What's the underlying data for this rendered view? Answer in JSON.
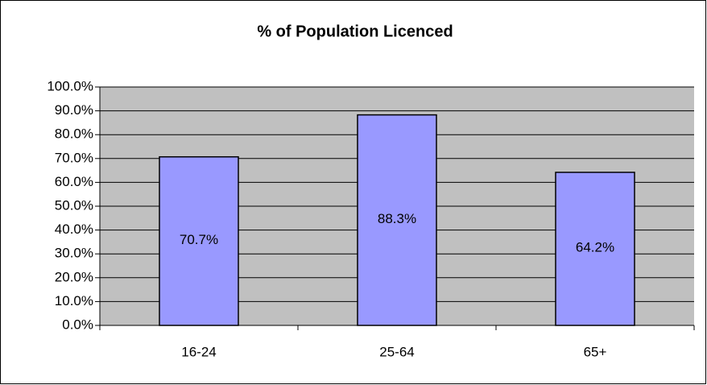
{
  "chart_data": {
    "type": "bar",
    "title": "% of Population Licenced",
    "categories": [
      "16-24",
      "25-64",
      "65+"
    ],
    "values": [
      70.7,
      88.3,
      64.2
    ],
    "value_labels": [
      "70.7%",
      "88.3%",
      "64.2%"
    ],
    "color": "#9999ff",
    "ylim": [
      0,
      100
    ],
    "yticks": [
      {
        "value": 0,
        "label": "0.0%"
      },
      {
        "value": 10,
        "label": "10.0%"
      },
      {
        "value": 20,
        "label": "20.0%"
      },
      {
        "value": 30,
        "label": "30.0%"
      },
      {
        "value": 40,
        "label": "40.0%"
      },
      {
        "value": 50,
        "label": "50.0%"
      },
      {
        "value": 60,
        "label": "60.0%"
      },
      {
        "value": 70,
        "label": "70.0%"
      },
      {
        "value": 80,
        "label": "80.0%"
      },
      {
        "value": 90,
        "label": "90.0%"
      },
      {
        "value": 100,
        "label": "100.0%"
      }
    ],
    "grid": true
  }
}
